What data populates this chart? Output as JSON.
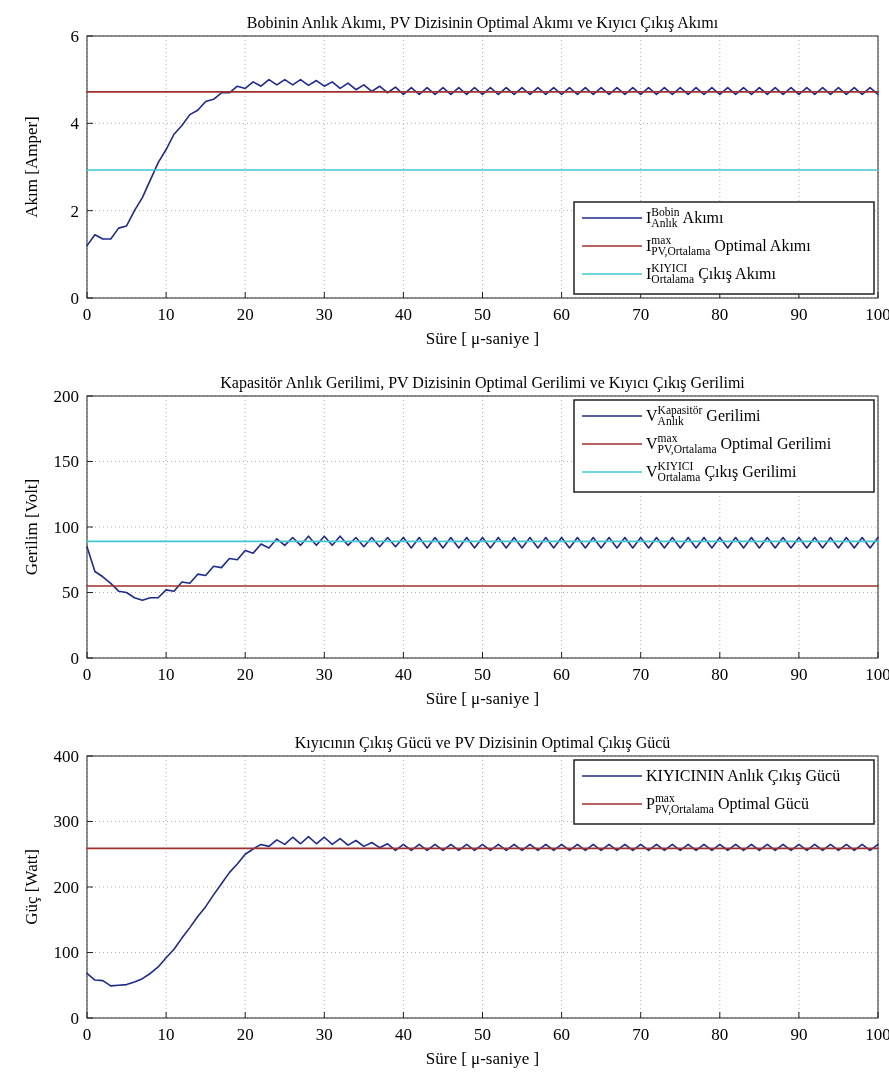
{
  "chart_data": [
    {
      "type": "line",
      "title": "Bobinin Anlık Akımı, PV Dizisinin Optimal Akımı ve Kıyıcı Çıkış Akımı",
      "xlabel": "Süre [ μ-saniye ]",
      "ylabel": "Akım [Amper]",
      "xlim": [
        0,
        100
      ],
      "xticks": [
        0,
        10,
        20,
        30,
        40,
        50,
        60,
        70,
        80,
        90,
        100
      ],
      "ylim": [
        0,
        6
      ],
      "yticks": [
        0,
        2,
        4,
        6
      ],
      "grid": true,
      "legend": "bottom right",
      "line_style": "solid",
      "x": [
        0,
        1,
        2,
        3,
        4,
        5,
        6,
        7,
        8,
        9,
        10,
        11,
        12,
        13,
        14,
        15,
        16,
        17,
        18,
        19,
        20,
        21,
        22,
        23,
        24,
        25,
        26,
        27,
        28,
        29,
        30,
        31,
        32,
        33,
        34,
        35,
        36,
        37,
        38,
        39,
        40,
        41,
        42,
        43,
        44,
        45,
        46,
        47,
        48,
        49,
        50,
        51,
        52,
        53,
        54,
        55,
        56,
        57,
        58,
        59,
        60,
        61,
        62,
        63,
        64,
        65,
        66,
        67,
        68,
        69,
        70,
        71,
        72,
        73,
        74,
        75,
        76,
        77,
        78,
        79,
        80,
        81,
        82,
        83,
        84,
        85,
        86,
        87,
        88,
        89,
        90,
        91,
        92,
        93,
        94,
        95,
        96,
        97,
        98,
        99,
        100
      ],
      "series": [
        {
          "name": "I$^{Bobin}$$_{Anlık}$ Akımı",
          "color": "#1f2a8a",
          "values": [
            1.2,
            1.45,
            1.35,
            1.35,
            1.6,
            1.65,
            2.0,
            2.3,
            2.7,
            3.1,
            3.4,
            3.75,
            3.95,
            4.2,
            4.3,
            4.5,
            4.55,
            4.7,
            4.7,
            4.85,
            4.8,
            4.95,
            4.85,
            5.0,
            4.88,
            5.0,
            4.88,
            5.0,
            4.87,
            4.98,
            4.85,
            4.95,
            4.8,
            4.92,
            4.77,
            4.88,
            4.73,
            4.85,
            4.7,
            4.83,
            4.66,
            4.82,
            4.66,
            4.82,
            4.66,
            4.82,
            4.66,
            4.82,
            4.66,
            4.82,
            4.66,
            4.82,
            4.66,
            4.82,
            4.66,
            4.82,
            4.66,
            4.82,
            4.66,
            4.82,
            4.66,
            4.82,
            4.66,
            4.82,
            4.66,
            4.82,
            4.66,
            4.82,
            4.66,
            4.82,
            4.66,
            4.82,
            4.66,
            4.82,
            4.66,
            4.82,
            4.66,
            4.82,
            4.66,
            4.82,
            4.66,
            4.82,
            4.66,
            4.82,
            4.66,
            4.82,
            4.66,
            4.82,
            4.66,
            4.82,
            4.66,
            4.82,
            4.66,
            4.82,
            4.66,
            4.82,
            4.66,
            4.82,
            4.66,
            4.82,
            4.66
          ]
        },
        {
          "name": "I$^{max}$$_{PV,Ortalama}$ Optimal Akımı",
          "color": "#a0302e",
          "values": [
            4.72,
            4.72,
            4.72,
            4.72,
            4.72,
            4.72,
            4.72,
            4.72,
            4.72,
            4.72,
            4.72,
            4.72,
            4.72,
            4.72,
            4.72,
            4.72,
            4.72,
            4.72,
            4.72,
            4.72,
            4.72,
            4.72,
            4.72,
            4.72,
            4.72,
            4.72,
            4.72,
            4.72,
            4.72,
            4.72,
            4.72,
            4.72,
            4.72,
            4.72,
            4.72,
            4.72,
            4.72,
            4.72,
            4.72,
            4.72,
            4.72,
            4.72,
            4.72,
            4.72,
            4.72,
            4.72,
            4.72,
            4.72,
            4.72,
            4.72,
            4.72,
            4.72,
            4.72,
            4.72,
            4.72,
            4.72,
            4.72,
            4.72,
            4.72,
            4.72,
            4.72,
            4.72,
            4.72,
            4.72,
            4.72,
            4.72,
            4.72,
            4.72,
            4.72,
            4.72,
            4.72,
            4.72,
            4.72,
            4.72,
            4.72,
            4.72,
            4.72,
            4.72,
            4.72,
            4.72,
            4.72,
            4.72,
            4.72,
            4.72,
            4.72,
            4.72,
            4.72,
            4.72,
            4.72,
            4.72,
            4.72,
            4.72,
            4.72,
            4.72,
            4.72,
            4.72,
            4.72,
            4.72,
            4.72,
            4.72,
            4.72
          ]
        },
        {
          "name": "I$^{KIYICI}$$_{Ortalama}$ Çıkış Akımı",
          "color": "#40c8d0",
          "values": [
            2.93,
            2.93,
            2.93,
            2.93,
            2.93,
            2.93,
            2.93,
            2.93,
            2.93,
            2.93,
            2.93,
            2.93,
            2.93,
            2.93,
            2.93,
            2.93,
            2.93,
            2.93,
            2.93,
            2.93,
            2.93,
            2.93,
            2.93,
            2.93,
            2.93,
            2.93,
            2.93,
            2.93,
            2.93,
            2.93,
            2.93,
            2.93,
            2.93,
            2.93,
            2.93,
            2.93,
            2.93,
            2.93,
            2.93,
            2.93,
            2.93,
            2.93,
            2.93,
            2.93,
            2.93,
            2.93,
            2.93,
            2.93,
            2.93,
            2.93,
            2.93,
            2.93,
            2.93,
            2.93,
            2.93,
            2.93,
            2.93,
            2.93,
            2.93,
            2.93,
            2.93,
            2.93,
            2.93,
            2.93,
            2.93,
            2.93,
            2.93,
            2.93,
            2.93,
            2.93,
            2.93,
            2.93,
            2.93,
            2.93,
            2.93,
            2.93,
            2.93,
            2.93,
            2.93,
            2.93,
            2.93,
            2.93,
            2.93,
            2.93,
            2.93,
            2.93,
            2.93,
            2.93,
            2.93,
            2.93,
            2.93,
            2.93,
            2.93,
            2.93,
            2.93,
            2.93,
            2.93,
            2.93,
            2.93,
            2.93,
            2.93
          ]
        }
      ]
    },
    {
      "type": "line",
      "title": "Kapasitör Anlık Gerilimi, PV Dizisinin Optimal Gerilimi ve Kıyıcı Çıkış Gerilimi",
      "xlabel": "Süre [ μ-saniye ]",
      "ylabel": "Gerilim [Volt]",
      "xlim": [
        0,
        100
      ],
      "xticks": [
        0,
        10,
        20,
        30,
        40,
        50,
        60,
        70,
        80,
        90,
        100
      ],
      "ylim": [
        0,
        200
      ],
      "yticks": [
        0,
        50,
        100,
        150,
        200
      ],
      "grid": true,
      "legend": "top right",
      "line_style": "solid",
      "x": [
        0,
        1,
        2,
        3,
        4,
        5,
        6,
        7,
        8,
        9,
        10,
        11,
        12,
        13,
        14,
        15,
        16,
        17,
        18,
        19,
        20,
        21,
        22,
        23,
        24,
        25,
        26,
        27,
        28,
        29,
        30,
        31,
        32,
        33,
        34,
        35,
        36,
        37,
        38,
        39,
        40,
        41,
        42,
        43,
        44,
        45,
        46,
        47,
        48,
        49,
        50,
        51,
        52,
        53,
        54,
        55,
        56,
        57,
        58,
        59,
        60,
        61,
        62,
        63,
        64,
        65,
        66,
        67,
        68,
        69,
        70,
        71,
        72,
        73,
        74,
        75,
        76,
        77,
        78,
        79,
        80,
        81,
        82,
        83,
        84,
        85,
        86,
        87,
        88,
        89,
        90,
        91,
        92,
        93,
        94,
        95,
        96,
        97,
        98,
        99,
        100
      ],
      "series": [
        {
          "name": "V$^{Kapasitör}$$_{Anlık}$ Gerilimi",
          "color": "#1f2a8a",
          "values": [
            85,
            66,
            62,
            57,
            51,
            50,
            46,
            44,
            46,
            46,
            52,
            51,
            58,
            57,
            64,
            63,
            70,
            69,
            76,
            75,
            82,
            80,
            87,
            84,
            91,
            86,
            92,
            86,
            93,
            86,
            93,
            86,
            93,
            86,
            92,
            85,
            92,
            85,
            92,
            85,
            92,
            84,
            92,
            84,
            92,
            84,
            92,
            84,
            92,
            84,
            92,
            84,
            92,
            84,
            92,
            84,
            92,
            84,
            92,
            84,
            92,
            84,
            92,
            84,
            92,
            84,
            92,
            84,
            92,
            84,
            92,
            84,
            92,
            84,
            92,
            84,
            92,
            84,
            92,
            84,
            92,
            84,
            92,
            84,
            92,
            84,
            92,
            84,
            92,
            84,
            92,
            84,
            92,
            84,
            92,
            84,
            92,
            84,
            92,
            84,
            92
          ]
        },
        {
          "name": "V$^{max}$$_{PV,Ortalama}$ Optimal Gerilimi",
          "color": "#a0302e",
          "values": [
            55,
            55,
            55,
            55,
            55,
            55,
            55,
            55,
            55,
            55,
            55,
            55,
            55,
            55,
            55,
            55,
            55,
            55,
            55,
            55,
            55,
            55,
            55,
            55,
            55,
            55,
            55,
            55,
            55,
            55,
            55,
            55,
            55,
            55,
            55,
            55,
            55,
            55,
            55,
            55,
            55,
            55,
            55,
            55,
            55,
            55,
            55,
            55,
            55,
            55,
            55,
            55,
            55,
            55,
            55,
            55,
            55,
            55,
            55,
            55,
            55,
            55,
            55,
            55,
            55,
            55,
            55,
            55,
            55,
            55,
            55,
            55,
            55,
            55,
            55,
            55,
            55,
            55,
            55,
            55,
            55,
            55,
            55,
            55,
            55,
            55,
            55,
            55,
            55,
            55,
            55,
            55,
            55,
            55,
            55,
            55,
            55,
            55,
            55,
            55,
            55
          ]
        },
        {
          "name": "V$^{KIYICI}$$_{Ortalama}$ Çıkış Gerilimi",
          "color": "#40c8d0",
          "values": [
            89,
            89,
            89,
            89,
            89,
            89,
            89,
            89,
            89,
            89,
            89,
            89,
            89,
            89,
            89,
            89,
            89,
            89,
            89,
            89,
            89,
            89,
            89,
            89,
            89,
            89,
            89,
            89,
            89,
            89,
            89,
            89,
            89,
            89,
            89,
            89,
            89,
            89,
            89,
            89,
            89,
            89,
            89,
            89,
            89,
            89,
            89,
            89,
            89,
            89,
            89,
            89,
            89,
            89,
            89,
            89,
            89,
            89,
            89,
            89,
            89,
            89,
            89,
            89,
            89,
            89,
            89,
            89,
            89,
            89,
            89,
            89,
            89,
            89,
            89,
            89,
            89,
            89,
            89,
            89,
            89,
            89,
            89,
            89,
            89,
            89,
            89,
            89,
            89,
            89,
            89,
            89,
            89,
            89,
            89,
            89,
            89,
            89,
            89,
            89,
            89
          ]
        }
      ]
    },
    {
      "type": "line",
      "title": "Kıyıcının Çıkış Gücü ve  PV Dizisinin Optimal Çıkış Gücü",
      "xlabel": "Süre [ μ-saniye ]",
      "ylabel": "Güç [Watt]",
      "xlim": [
        0,
        100
      ],
      "xticks": [
        0,
        10,
        20,
        30,
        40,
        50,
        60,
        70,
        80,
        90,
        100
      ],
      "ylim": [
        0,
        400
      ],
      "yticks": [
        0,
        100,
        200,
        300,
        400
      ],
      "grid": true,
      "legend": "top right",
      "line_style": "solid",
      "x": [
        0,
        1,
        2,
        3,
        4,
        5,
        6,
        7,
        8,
        9,
        10,
        11,
        12,
        13,
        14,
        15,
        16,
        17,
        18,
        19,
        20,
        21,
        22,
        23,
        24,
        25,
        26,
        27,
        28,
        29,
        30,
        31,
        32,
        33,
        34,
        35,
        36,
        37,
        38,
        39,
        40,
        41,
        42,
        43,
        44,
        45,
        46,
        47,
        48,
        49,
        50,
        51,
        52,
        53,
        54,
        55,
        56,
        57,
        58,
        59,
        60,
        61,
        62,
        63,
        64,
        65,
        66,
        67,
        68,
        69,
        70,
        71,
        72,
        73,
        74,
        75,
        76,
        77,
        78,
        79,
        80,
        81,
        82,
        83,
        84,
        85,
        86,
        87,
        88,
        89,
        90,
        91,
        92,
        93,
        94,
        95,
        96,
        97,
        98,
        99,
        100
      ],
      "series": [
        {
          "name": "KIYICININ Anlık Çıkış Gücü",
          "color": "#1f2a8a",
          "values": [
            68,
            58,
            57,
            49,
            50,
            51,
            55,
            60,
            68,
            78,
            92,
            105,
            122,
            138,
            155,
            170,
            188,
            205,
            222,
            235,
            250,
            258,
            265,
            262,
            272,
            265,
            276,
            266,
            277,
            266,
            276,
            265,
            274,
            264,
            271,
            262,
            268,
            260,
            266,
            256,
            265,
            256,
            265,
            256,
            265,
            256,
            265,
            256,
            265,
            256,
            265,
            256,
            265,
            256,
            265,
            256,
            265,
            256,
            265,
            256,
            265,
            256,
            265,
            256,
            265,
            256,
            265,
            256,
            265,
            256,
            265,
            256,
            265,
            256,
            265,
            256,
            265,
            256,
            265,
            256,
            265,
            256,
            265,
            256,
            265,
            256,
            265,
            256,
            265,
            256,
            265,
            256,
            265,
            256,
            265,
            256,
            265,
            256,
            265,
            256,
            265
          ]
        },
        {
          "name": "P$^{max}$$_{PV,Ortalama}$ Optimal Gücü",
          "color": "#a0302e",
          "values": [
            259,
            259,
            259,
            259,
            259,
            259,
            259,
            259,
            259,
            259,
            259,
            259,
            259,
            259,
            259,
            259,
            259,
            259,
            259,
            259,
            259,
            259,
            259,
            259,
            259,
            259,
            259,
            259,
            259,
            259,
            259,
            259,
            259,
            259,
            259,
            259,
            259,
            259,
            259,
            259,
            259,
            259,
            259,
            259,
            259,
            259,
            259,
            259,
            259,
            259,
            259,
            259,
            259,
            259,
            259,
            259,
            259,
            259,
            259,
            259,
            259,
            259,
            259,
            259,
            259,
            259,
            259,
            259,
            259,
            259,
            259,
            259,
            259,
            259,
            259,
            259,
            259,
            259,
            259,
            259,
            259,
            259,
            259,
            259,
            259,
            259,
            259,
            259,
            259,
            259,
            259,
            259,
            259,
            259,
            259,
            259,
            259,
            259,
            259,
            259,
            259
          ]
        }
      ]
    }
  ]
}
